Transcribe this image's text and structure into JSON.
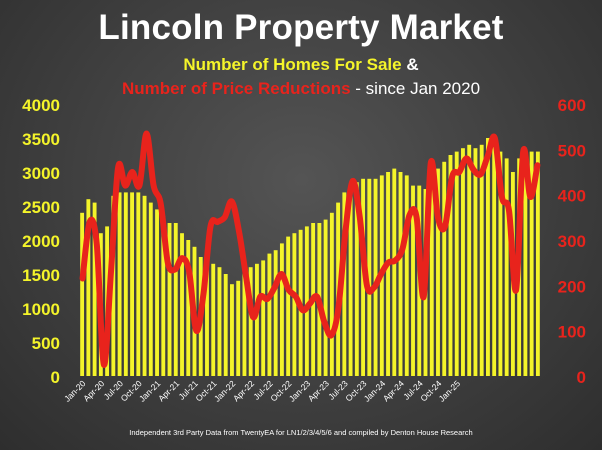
{
  "title": "Lincoln Property Market",
  "subtitle_line1": {
    "highlight": "Number of Homes For Sale",
    "rest": " &"
  },
  "subtitle_line2": {
    "highlight": "Number of Price Reductions",
    "rest": " - since Jan 2020"
  },
  "footer": "Independent 3rd Party Data from TwentyEA for LN1/2/3/4/5/6 and compiled by Denton House Research",
  "colors": {
    "bars": "#f4f42a",
    "line": "#e8231c",
    "left_axis": "#f4f42a",
    "right_axis": "#e8231c"
  },
  "chart_data": {
    "type": "bar",
    "combo": "bar + line (dual axis)",
    "x_tick_labels": [
      "Jan-20",
      "Apr-20",
      "Jul-20",
      "Oct-20",
      "Jan-21",
      "Apr-21",
      "Jul-21",
      "Oct-21",
      "Jan-22",
      "Apr-22",
      "Jul-22",
      "Oct-22",
      "Jan-23",
      "Apr-23",
      "Jul-23",
      "Oct-23",
      "Jan-24",
      "Apr-24",
      "Jul-24",
      "Oct-24",
      "Jan-25"
    ],
    "y_left": {
      "ticks": [
        0,
        500,
        1000,
        1500,
        2000,
        2500,
        3000,
        3500,
        4000
      ],
      "ylim": [
        0,
        4000
      ]
    },
    "y_right": {
      "ticks": [
        0,
        100,
        200,
        300,
        400,
        500,
        600
      ],
      "ylim": [
        0,
        600
      ]
    },
    "series": [
      {
        "axis": "left",
        "values": [
          2400,
          2600,
          2550,
          2100,
          2200,
          2650,
          2700,
          2700,
          2700,
          2700,
          2650,
          2550,
          2450,
          2350,
          2250,
          2250,
          2100,
          2000,
          1900,
          1750,
          1700,
          1650,
          1600,
          1500,
          1350,
          1400,
          1550,
          1600,
          1650,
          1700,
          1800,
          1850,
          1950,
          2050,
          2100,
          2150,
          2200,
          2250,
          2250,
          2300,
          2400,
          2550,
          2700,
          2800,
          2850,
          2900,
          2900,
          2900,
          2950,
          3000,
          3050,
          3000,
          2950,
          2800,
          2800,
          2750,
          2900,
          3050,
          3150,
          3250,
          3300,
          3350,
          3400,
          3350,
          3400,
          3500,
          3500,
          3300,
          3200,
          3000,
          3200,
          3150,
          3300,
          3300
        ]
      },
      {
        "axis": "right",
        "values": [
          215,
          340,
          290,
          25,
          230,
          460,
          420,
          450,
          420,
          535,
          420,
          380,
          250,
          235,
          260,
          230,
          100,
          180,
          330,
          340,
          350,
          385,
          320,
          220,
          130,
          175,
          170,
          195,
          225,
          190,
          175,
          145,
          160,
          175,
          120,
          90,
          150,
          320,
          430,
          350,
          200,
          195,
          225,
          250,
          255,
          280,
          355,
          350,
          175,
          470,
          350,
          330,
          440,
          450,
          480,
          455,
          445,
          485,
          525,
          395,
          365,
          190,
          495,
          395,
          465
        ]
      }
    ]
  }
}
